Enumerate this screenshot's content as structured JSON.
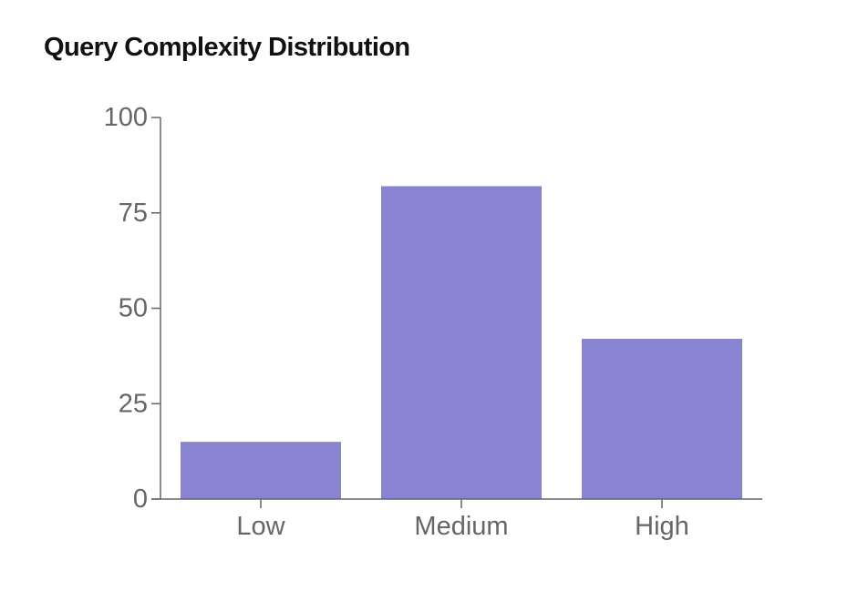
{
  "colors": {
    "bar": "#8884d2",
    "axis": "#666666",
    "title": "#111111"
  },
  "chart_data": {
    "type": "bar",
    "title": "Query Complexity Distribution",
    "categories": [
      "Low",
      "Medium",
      "High"
    ],
    "values": [
      15,
      82,
      42
    ],
    "xlabel": "",
    "ylabel": "",
    "ylim": [
      0,
      100
    ],
    "yticks": [
      0,
      25,
      50,
      75,
      100
    ],
    "grid": false,
    "legend": "none"
  }
}
